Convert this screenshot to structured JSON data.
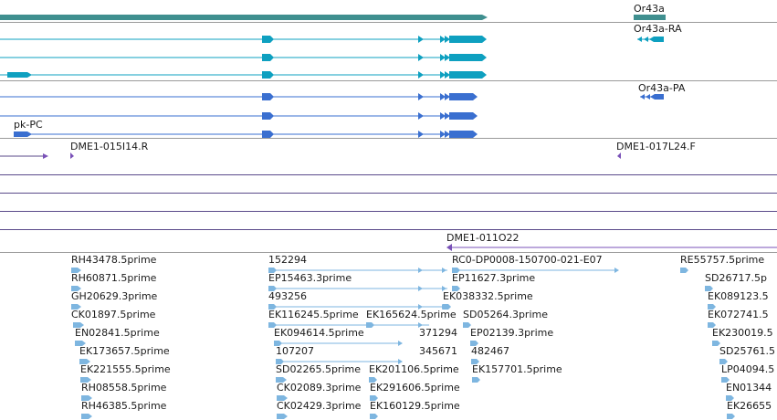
{
  "app": "genome-browser-track-view",
  "colors": {
    "gene": "#3f8f8f",
    "transcript_ra": "#0ea0c0",
    "transcript_pa": "#3a6fd0",
    "clone": "#7a52b8",
    "est": "#7eb6e0",
    "separator": "#9a9a9a",
    "clone_line": "#5a4a8a"
  },
  "gene_track": {
    "gene_label": "Or43a"
  },
  "ra_track": {
    "transcript_label": "Or43a-RA"
  },
  "pa_track": {
    "transcript_label": "Or43a-PA",
    "other_label": "pk-PC"
  },
  "clone_track": {
    "clones": [
      {
        "id": "dme1_015i14",
        "label": "DME1-015I14.R"
      },
      {
        "id": "dme1_017l24",
        "label": "DME1-017L24.F"
      },
      {
        "id": "dme1_011o22",
        "label": "DME1-011O22"
      }
    ]
  },
  "est_track": {
    "columns": [
      [
        "RH43478.5prime",
        "RH60871.5prime",
        "GH20629.3prime",
        "CK01897.5prime",
        "EN02841.5prime",
        "EK173657.5prime",
        "EK221555.5prime",
        "RH08558.5prime",
        "RH46385.5prime"
      ],
      [
        "152294",
        "EP15463.3prime",
        "493256",
        "EK116245.5prime",
        "EK094614.5prime",
        "107207",
        "SD02265.5prime",
        "CK02089.3prime",
        "CK02429.3prime"
      ],
      [
        "EK165624.5prime",
        "371294",
        "345671",
        "EK201106.5prime",
        "EK291606.5prime",
        "EK160129.5prime"
      ],
      [
        "RC0-DP0008-150700-021-E07",
        "EP11627.3prime",
        "EK038332.5prime",
        "SD05264.3prime",
        "EP02139.3prime",
        "482467",
        "EK157701.5prime"
      ],
      [
        "RE55757.5prime",
        "SD26717.5p",
        "EK089123.5",
        "EK072741.5",
        "EK230019.5",
        "SD25761.5",
        "LP04094.5",
        "EN01344",
        "EK26655"
      ]
    ]
  }
}
